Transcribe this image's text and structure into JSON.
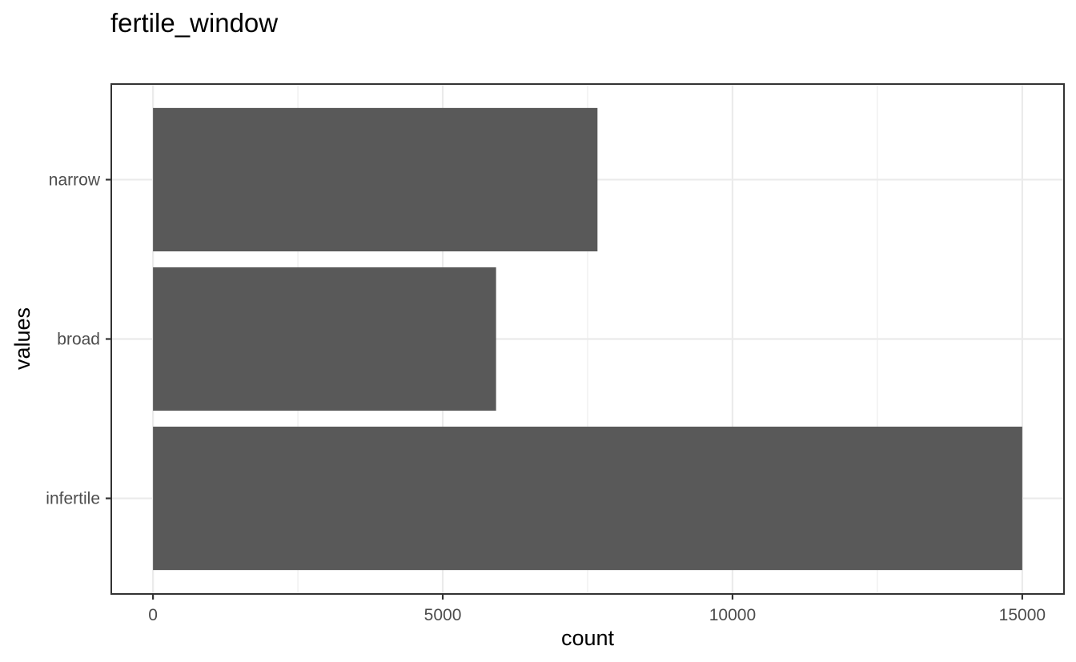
{
  "chart_data": {
    "type": "bar",
    "orientation": "horizontal",
    "title": "fertile_window",
    "xlabel": "count",
    "ylabel": "values",
    "categories": [
      "infertile",
      "broad",
      "narrow"
    ],
    "values": [
      15000,
      5920,
      7670
    ],
    "xlim": [
      -720,
      15720
    ],
    "xticks": [
      0,
      5000,
      10000,
      15000
    ],
    "xtick_labels": [
      "0",
      "5000",
      "10000",
      "15000"
    ],
    "grid": true,
    "legend": "none",
    "colors": {
      "bar": "#595959",
      "grid": "#ebebeb",
      "border": "#333333"
    }
  }
}
